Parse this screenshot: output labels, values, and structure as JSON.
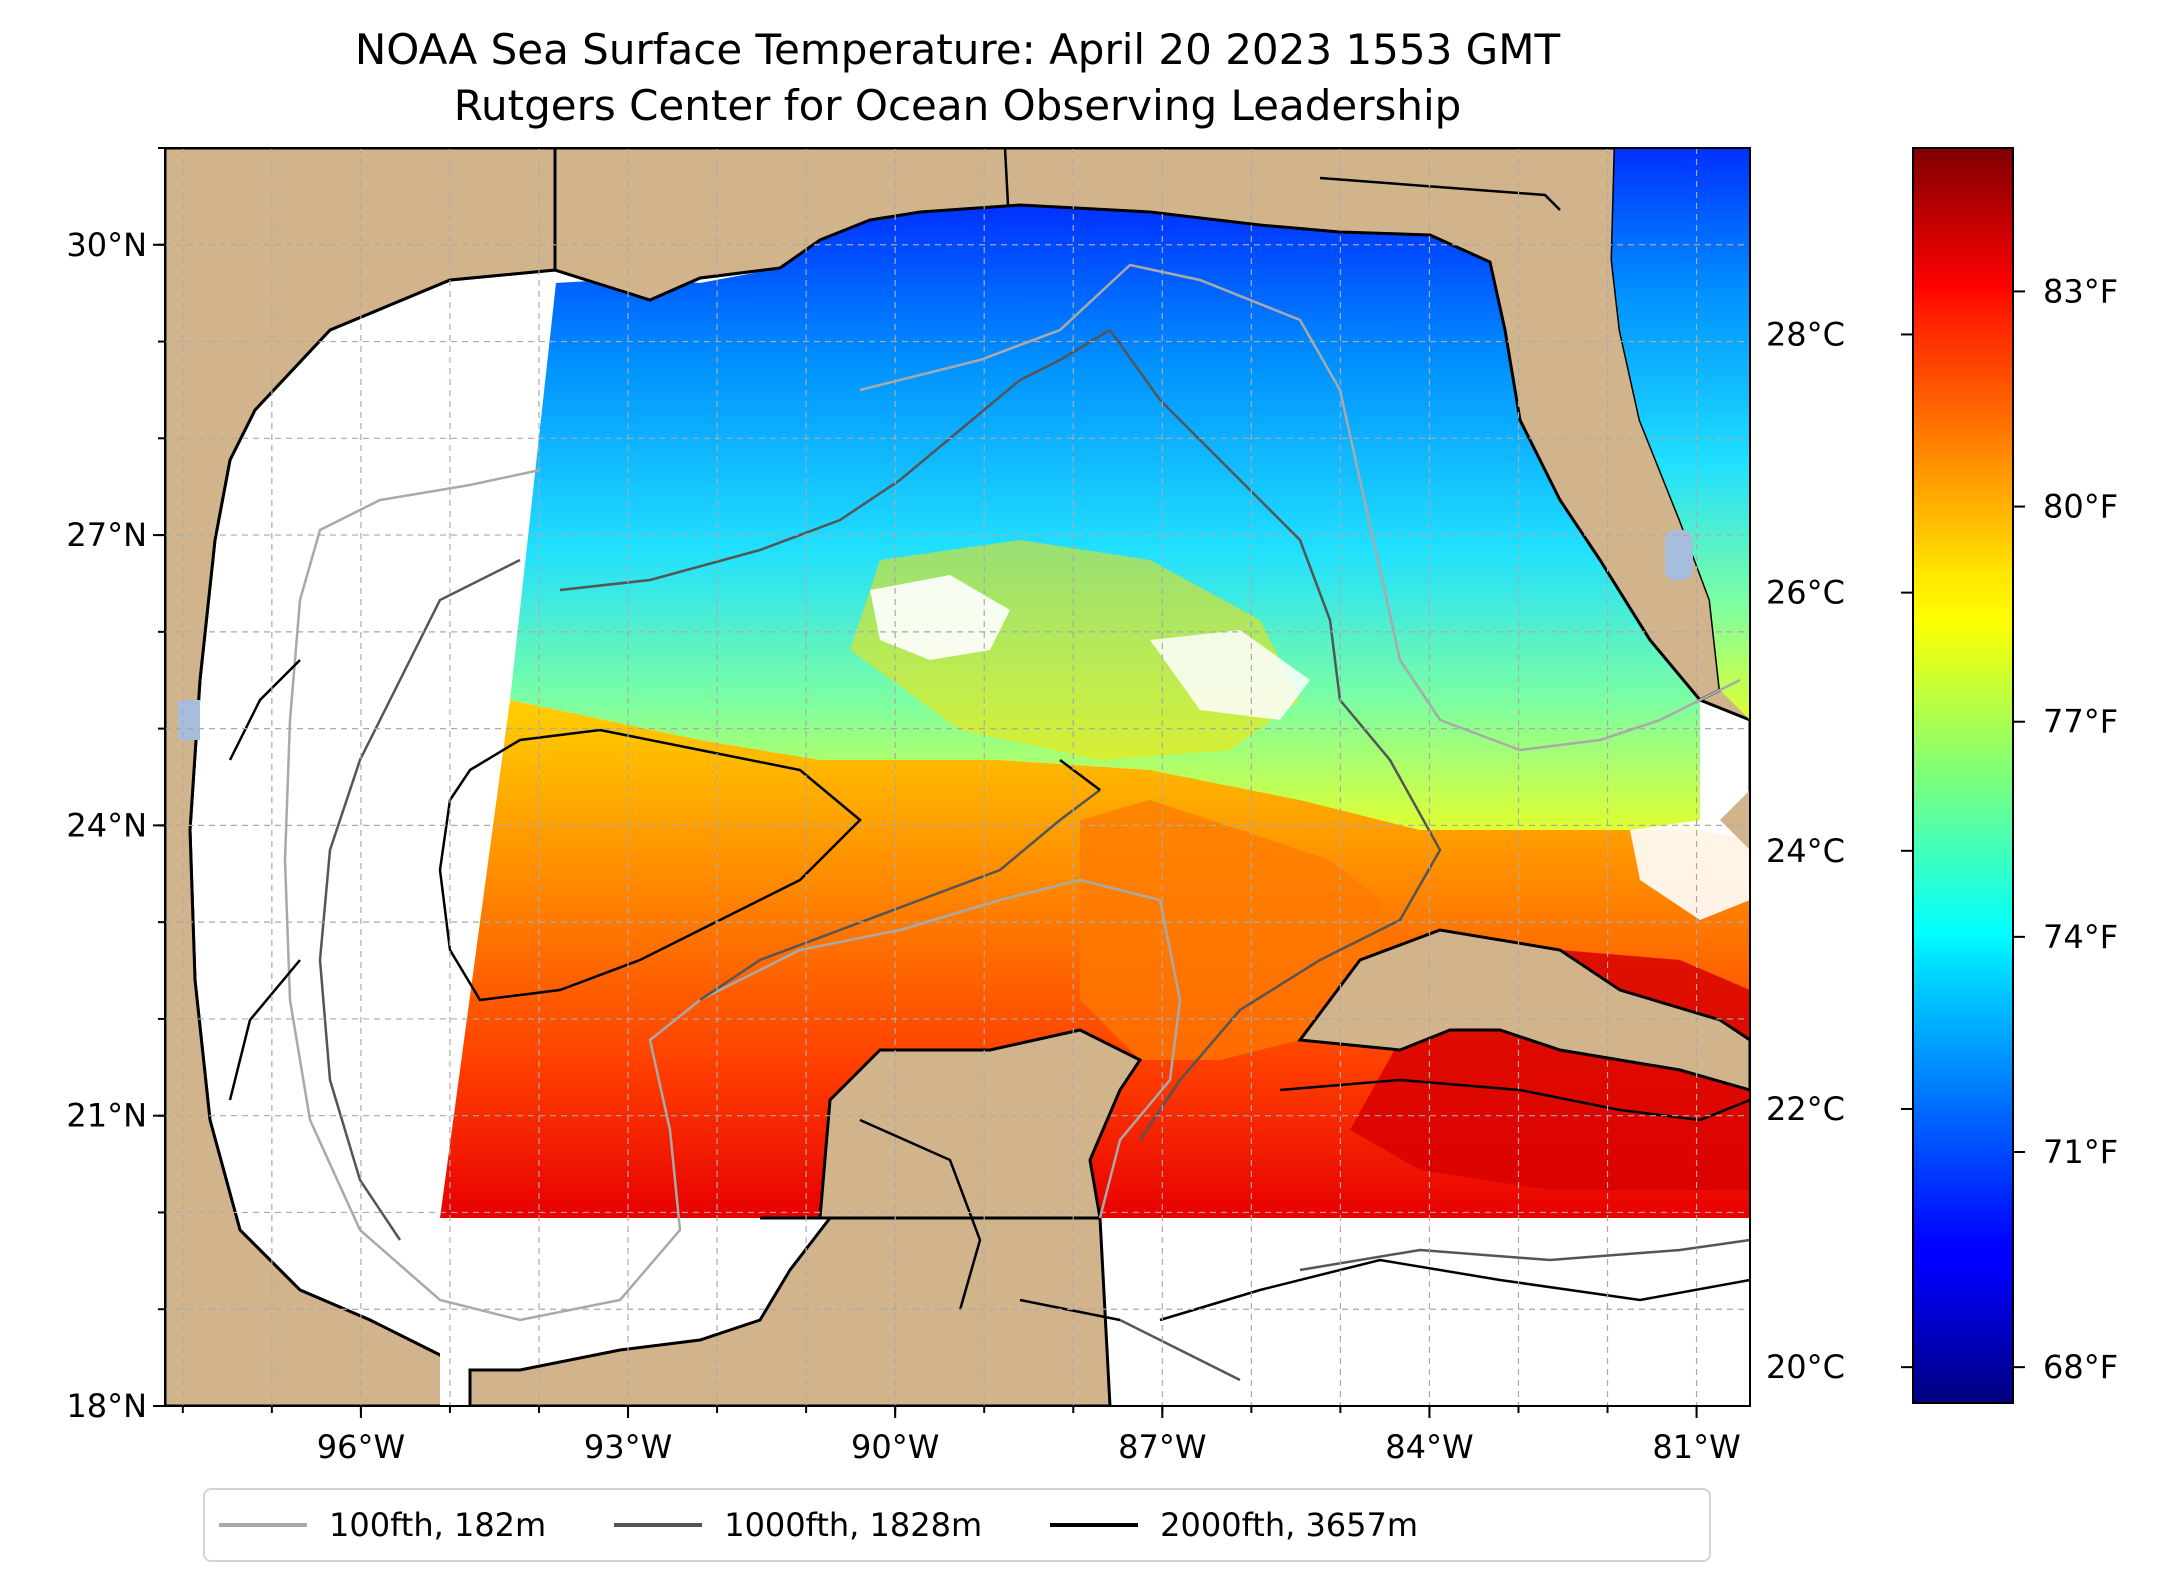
{
  "title_lines": [
    "NOAA Sea Surface Temperature: April 20 2023 1553 GMT",
    "Rutgers Center for Ocean Observing Leadership"
  ],
  "map": {
    "lon_range": [
      -98.2,
      -80.4
    ],
    "lat_range": [
      18,
      31
    ],
    "lon_ticks": [
      {
        "value": -96,
        "label": "96°W"
      },
      {
        "value": -93,
        "label": "93°W"
      },
      {
        "value": -90,
        "label": "90°W"
      },
      {
        "value": -87,
        "label": "87°W"
      },
      {
        "value": -84,
        "label": "84°W"
      },
      {
        "value": -81,
        "label": "81°W"
      }
    ],
    "lat_ticks": [
      {
        "value": 18,
        "label": "18°N"
      },
      {
        "value": 21,
        "label": "21°N"
      },
      {
        "value": 24,
        "label": "24°N"
      },
      {
        "value": 27,
        "label": "27°N"
      },
      {
        "value": 30,
        "label": "30°N"
      }
    ],
    "grid": true,
    "colors": {
      "land": "#d2b48c",
      "no_data": "#ffffff",
      "lake": "#a6bddb"
    }
  },
  "colorbar": {
    "colormap": "jet",
    "range_f": [
      67.5,
      85
    ],
    "celsius_ticks": [
      {
        "value": 20,
        "label": "20°C"
      },
      {
        "value": 22,
        "label": "22°C"
      },
      {
        "value": 24,
        "label": "24°C"
      },
      {
        "value": 26,
        "label": "26°C"
      },
      {
        "value": 28,
        "label": "28°C"
      }
    ],
    "fahrenheit_ticks": [
      {
        "value": 68,
        "label": "68°F"
      },
      {
        "value": 71,
        "label": "71°F"
      },
      {
        "value": 74,
        "label": "74°F"
      },
      {
        "value": 77,
        "label": "77°F"
      },
      {
        "value": 80,
        "label": "80°F"
      },
      {
        "value": 83,
        "label": "83°F"
      }
    ]
  },
  "legend": {
    "placement": "bottom",
    "items": [
      {
        "label": "100fth, 182m",
        "color": "#a9a9a9"
      },
      {
        "label": "1000fth, 1828m",
        "color": "#555555"
      },
      {
        "label": "2000fth, 3657m",
        "color": "#000000"
      }
    ]
  }
}
